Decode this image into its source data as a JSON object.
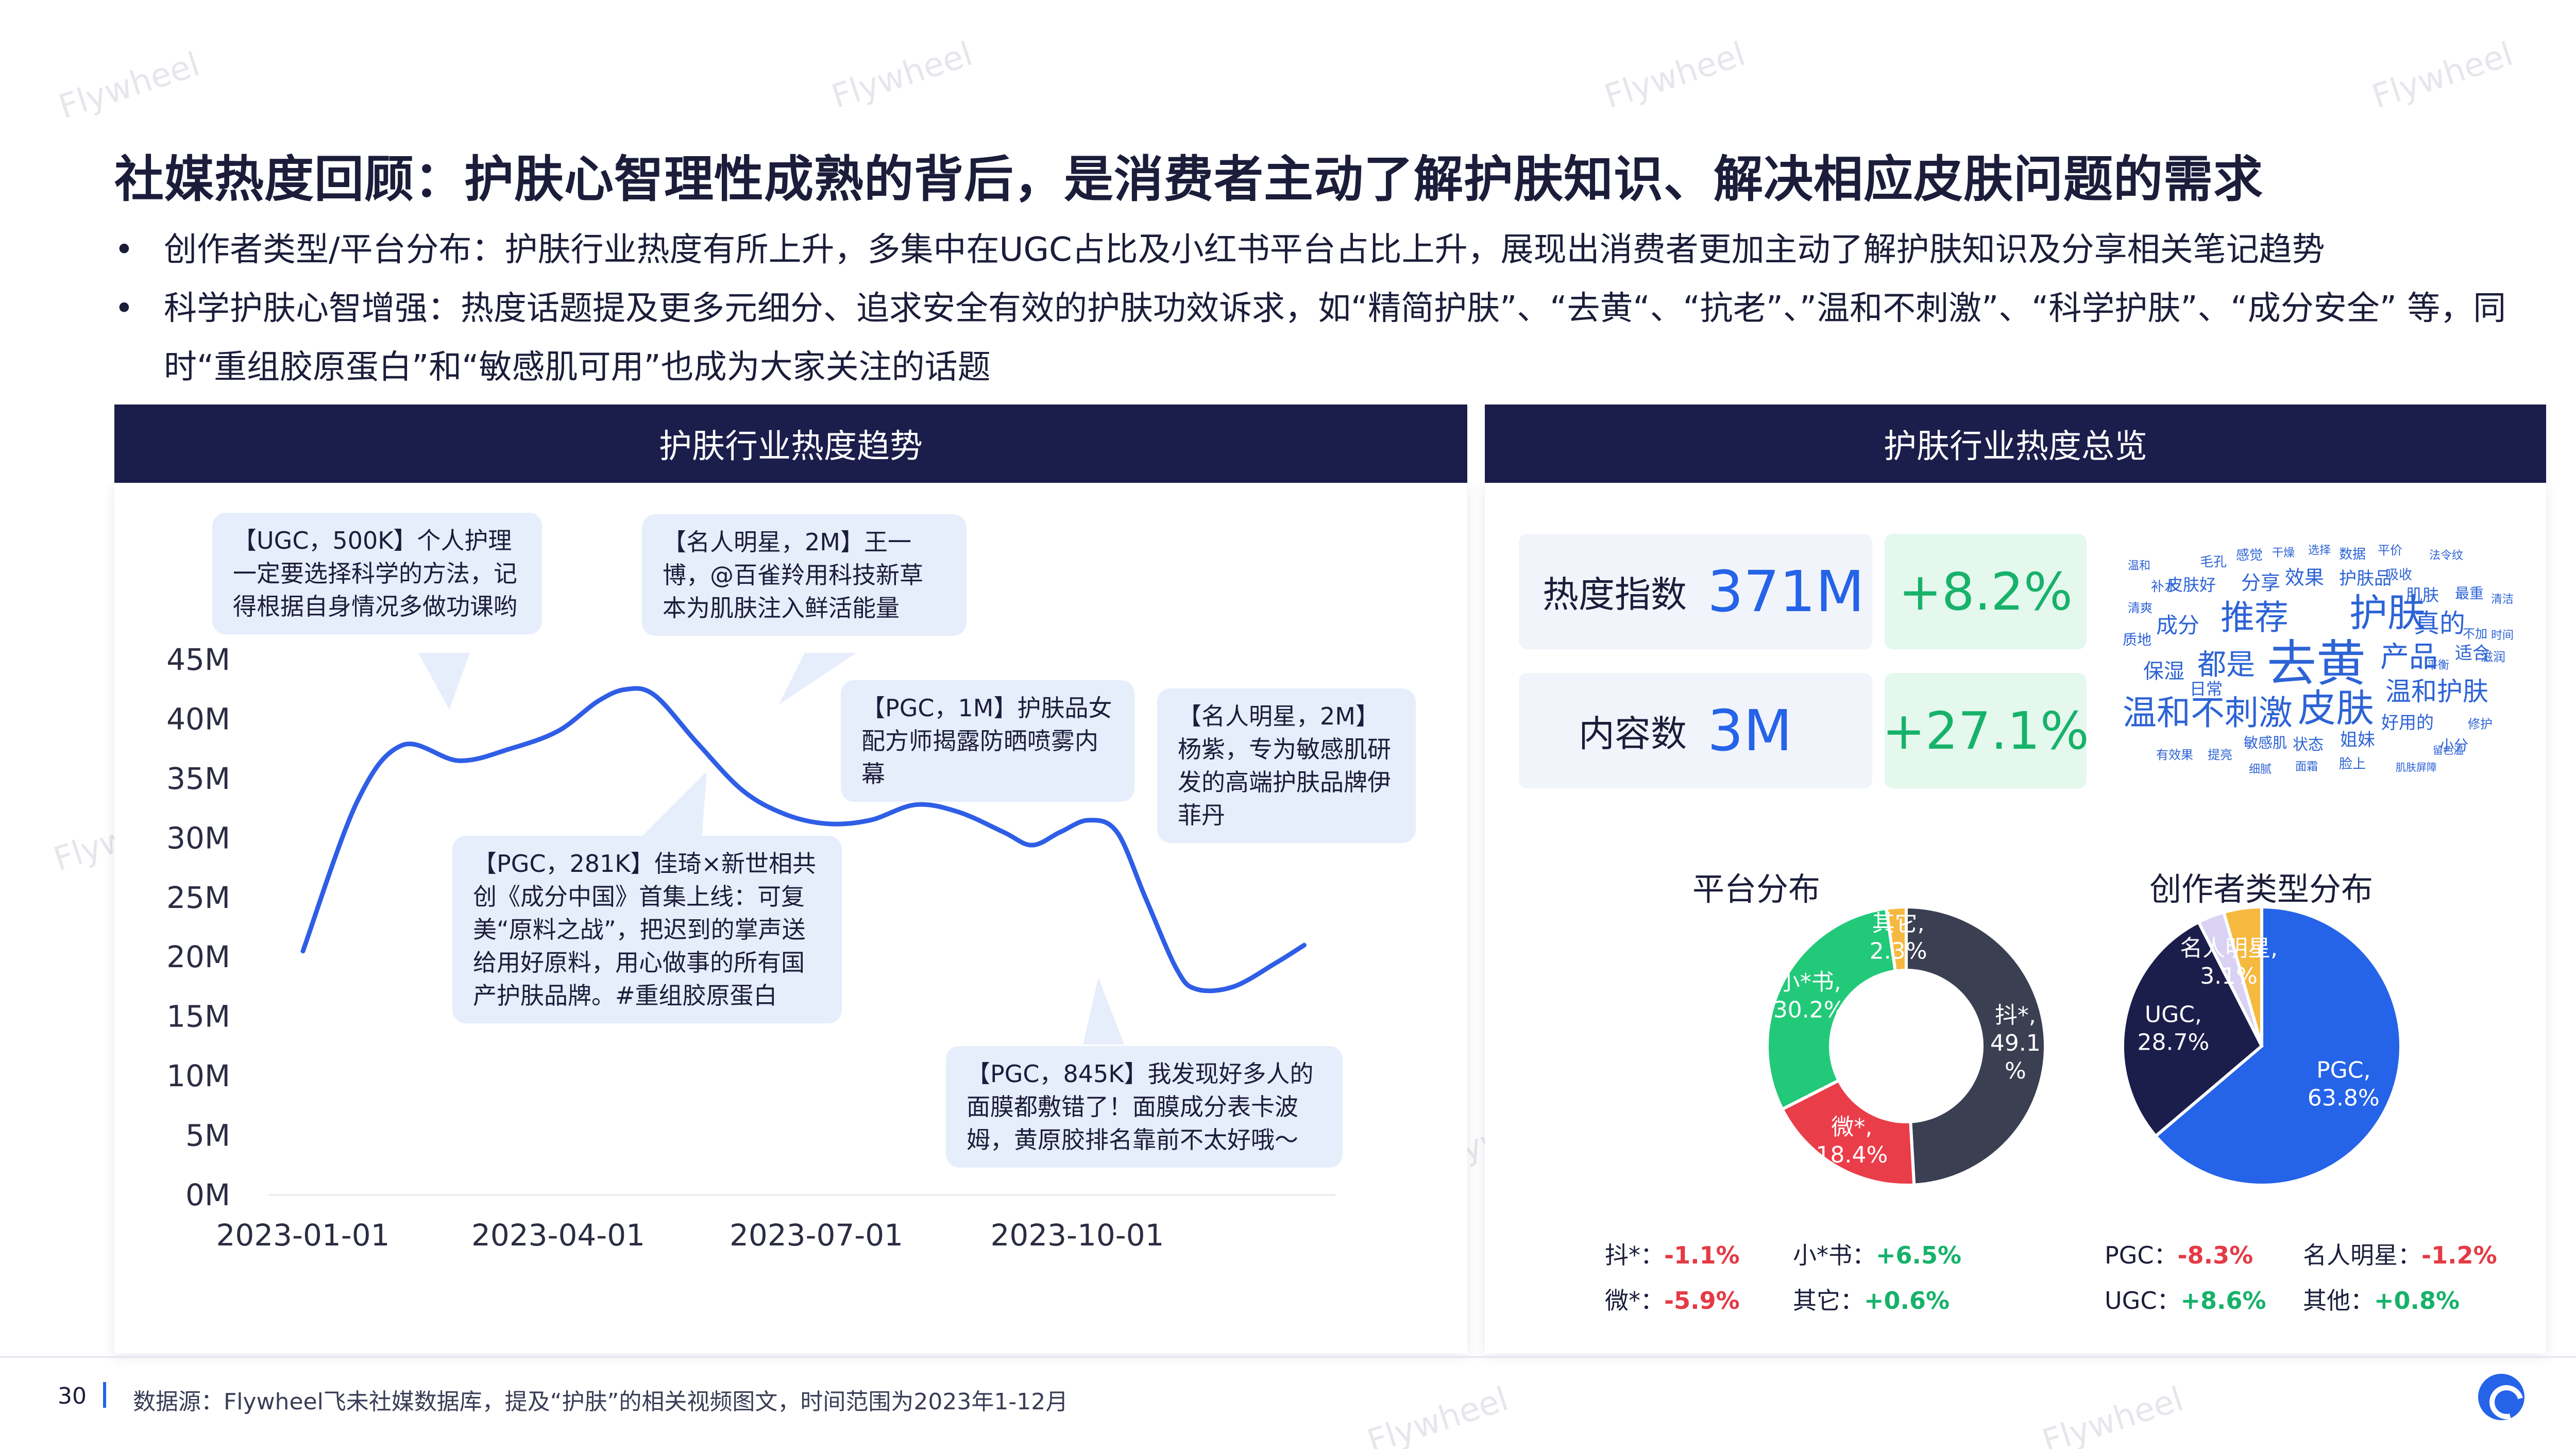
{
  "watermark_text": "Flywheel",
  "title": "社媒热度回顾：护肤心智理性成熟的背后，是消费者主动了解护肤知识、解决相应皮肤问题的需求",
  "bullets": [
    "创作者类型/平台分布：护肤行业热度有所上升，多集中在UGC占比及小红书平台占比上升，展现出消费者更加主动了解护肤知识及分享相关笔记趋势",
    "科学护肤心智增强：热度话题提及更多元细分、追求安全有效的护肤功效诉求，如“精简护肤”、“去黄“、“抗老”、”温和不刺激”、“科学护肤”、“成分安全” 等，同时“重组胶原蛋白”和“敏感肌可用”也成为大家关注的话题"
  ],
  "left_panel": {
    "title": "护肤行业热度趋势"
  },
  "right_panel": {
    "title": "护肤行业热度总览",
    "metrics": [
      {
        "label": "热度指数",
        "value": "371M",
        "change": "+8.2%"
      },
      {
        "label": "内容数",
        "value": "3M",
        "change": "+27.1%"
      }
    ],
    "wordcloud": [
      "去黄",
      "护肤",
      "推荐",
      "皮肤",
      "温和不刺激",
      "产品",
      "都是",
      "真的",
      "温和护肤",
      "成分",
      "效果",
      "分享",
      "护肤品",
      "保湿",
      "日常",
      "好用的",
      "姐妹",
      "适合",
      "敏感肌",
      "状态",
      "小分",
      "肌肤",
      "最重",
      "感觉",
      "毛孔",
      "皮肤好",
      "补水",
      "清爽",
      "质地",
      "数据",
      "平价",
      "吸收",
      "法令纹",
      "温和",
      "干燥",
      "选择",
      "不加",
      "时间",
      "滋润",
      "修护",
      "有效果",
      "提亮",
      "细腻",
      "面霜",
      "脸上",
      "肌肤屏障",
      "留色温",
      "清洁",
      "平衡"
    ],
    "platform_pie": {
      "title": "平台分布",
      "changes": [
        {
          "name": "抖*：",
          "value": "-1.1%"
        },
        {
          "name": "小*书：",
          "value": "+6.5%"
        },
        {
          "name": "微*：",
          "value": "-5.9%"
        },
        {
          "name": "其它：",
          "value": "+0.6%"
        }
      ]
    },
    "creator_pie": {
      "title": "创作者类型分布",
      "changes": [
        {
          "name": "PGC：",
          "value": "-8.3%"
        },
        {
          "name": "名人明星：",
          "value": "-1.2%"
        },
        {
          "name": "UGC：",
          "value": "+8.6%"
        },
        {
          "name": "其他：",
          "value": "+0.8%"
        }
      ]
    }
  },
  "chart_data": [
    {
      "type": "line",
      "title": "护肤行业热度趋势",
      "x_ticks": [
        "2023-01-01",
        "2023-04-01",
        "2023-07-01",
        "2023-10-01"
      ],
      "y_ticks": [
        "0M",
        "5M",
        "10M",
        "15M",
        "20M",
        "25M",
        "30M",
        "35M",
        "40M",
        "45M"
      ],
      "ylim": [
        0,
        45
      ],
      "xlim": [
        "2023-01-01",
        "2023-12-31"
      ],
      "series": [
        {
          "color": "#2f5ee6",
          "points": [
            [
              "2023-01-01",
              20.5
            ],
            [
              "2023-01-20",
              33
            ],
            [
              "2023-02-05",
              37.8
            ],
            [
              "2023-02-25",
              36.5
            ],
            [
              "2023-03-15",
              37.5
            ],
            [
              "2023-04-01",
              39
            ],
            [
              "2023-04-15",
              41.5
            ],
            [
              "2023-04-25",
              42.5
            ],
            [
              "2023-05-05",
              42
            ],
            [
              "2023-05-20",
              38
            ],
            [
              "2023-06-05",
              34
            ],
            [
              "2023-06-20",
              32
            ],
            [
              "2023-07-05",
              31.2
            ],
            [
              "2023-07-20",
              31.5
            ],
            [
              "2023-08-05",
              32.8
            ],
            [
              "2023-08-20",
              32.2
            ],
            [
              "2023-09-05",
              30.5
            ],
            [
              "2023-09-15",
              29.4
            ],
            [
              "2023-09-25",
              30.5
            ],
            [
              "2023-10-05",
              31.5
            ],
            [
              "2023-10-15",
              30.5
            ],
            [
              "2023-10-25",
              25
            ],
            [
              "2023-11-05",
              19
            ],
            [
              "2023-11-12",
              17.3
            ],
            [
              "2023-11-25",
              17.5
            ],
            [
              "2023-12-10",
              19.5
            ],
            [
              "2023-12-20",
              21
            ]
          ]
        }
      ],
      "annotations": [
        "【UGC，500K】个人护理一定要选择科学的方法，记得根据自身情况多做功课哟",
        "【名人明星，2M】王一博，@百雀羚用科技新草本为肌肤注入鲜活能量",
        "【PGC，281K】佳琦×新世相共创《成分中国》首集上线：可复美“原料之战”，把迟到的掌声送给用好原料，用心做事的所有国产护肤品牌。#重组胶原蛋白",
        "【PGC，1M】护肤品女配方师揭露防晒喷雾内幕",
        "【名人明星，2M】杨紫，专为敏感肌研发的高端护肤品牌伊菲丹",
        "【PGC，845K】我发现好多人的面膜都敷错了！面膜成分表卡波姆，黄原胶排名靠前不太好哦～"
      ]
    },
    {
      "type": "pie",
      "title": "平台分布",
      "slices": [
        {
          "name": "抖*",
          "value": 49.1,
          "label": "抖*,\n49.1\n%",
          "color": "#3a3f52"
        },
        {
          "name": "微*",
          "value": 18.4,
          "label": "微*,\n18.4%",
          "color": "#ea3d4a"
        },
        {
          "name": "小*书",
          "value": 30.2,
          "label": "小*书,\n30.2%",
          "color": "#22c979"
        },
        {
          "name": "其它",
          "value": 2.3,
          "label": "其它,\n2.3%",
          "color": "#f6b940"
        }
      ],
      "donut": true
    },
    {
      "type": "pie",
      "title": "创作者类型分布",
      "slices": [
        {
          "name": "PGC",
          "value": 63.8,
          "label": "PGC,\n63.8%",
          "color": "#2563e8"
        },
        {
          "name": "UGC",
          "value": 28.7,
          "label": "UGC,\n28.7%",
          "color": "#1b1d4b"
        },
        {
          "name": "名人明星",
          "value": 3.1,
          "label": "名人明星,\n3.1%",
          "color": "#d9d2f3"
        },
        {
          "name": "其他",
          "value": 4.4,
          "label": "",
          "color": "#f6b940"
        }
      ]
    }
  ],
  "footer": {
    "page": "30",
    "source": "数据源：Flywheel飞未社媒数据库，提及“护肤”的相关视频图文，时间范围为2023年1-12月"
  }
}
